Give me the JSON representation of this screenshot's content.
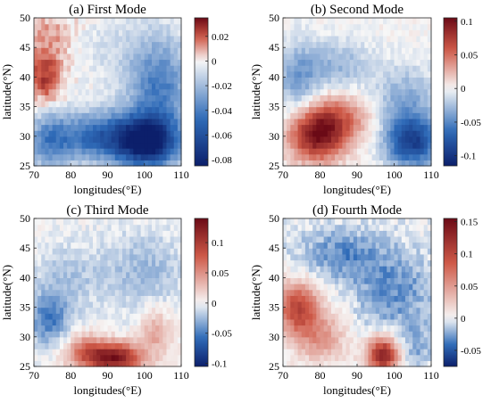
{
  "figure": {
    "layout": "2x2 grid of heatmap panels, each with a vertical colorbar on its right",
    "colormap": "diverging: dark blue (negative) - white (zero) - dark red (positive)",
    "colors": {
      "neg_dark": "#0c1f6b",
      "neg_mid": "#2f6bb8",
      "zero": "#f7f7f7",
      "pos_mid": "#cf5a48",
      "pos_dark": "#6b0a16"
    }
  },
  "chart_data": [
    {
      "type": "heatmap",
      "title": "(a) First Mode",
      "xlabel": "longitudes(°E)",
      "ylabel": "latitude(°N)",
      "xlim": [
        70,
        110
      ],
      "ylim": [
        25,
        50
      ],
      "x_ticks": [
        "70",
        "80",
        "90",
        "100",
        "110"
      ],
      "y_ticks": [
        "25",
        "30",
        "35",
        "40",
        "45",
        "50"
      ],
      "colorbar": {
        "range": [
          -0.085,
          0.035
        ],
        "ticks": [
          -0.08,
          -0.06,
          -0.04,
          -0.02,
          0,
          0.02
        ],
        "tick_labels": [
          "-0.08",
          "-0.06",
          "-0.04",
          "-0.02",
          "0",
          "0.02"
        ]
      },
      "features": [
        {
          "lon": 73,
          "lat": 40,
          "value": 0.025,
          "sx": 3.5,
          "sy": 3.0
        },
        {
          "lon": 75,
          "lat": 47,
          "value": 0.012,
          "sx": 5.0,
          "sy": 3.0
        },
        {
          "lon": 101,
          "lat": 29,
          "value": -0.075,
          "sx": 6.0,
          "sy": 3.0
        },
        {
          "lon": 88,
          "lat": 30,
          "value": -0.05,
          "sx": 9.0,
          "sy": 3.0
        },
        {
          "lon": 74,
          "lat": 29,
          "value": -0.03,
          "sx": 4.0,
          "sy": 3.5
        },
        {
          "lon": 104,
          "lat": 38,
          "value": -0.04,
          "sx": 6.0,
          "sy": 6.0
        },
        {
          "lon": 92,
          "lat": 45,
          "value": -0.008,
          "sx": 10.0,
          "sy": 4.0
        }
      ]
    },
    {
      "type": "heatmap",
      "title": "(b) Second Mode",
      "xlabel": "longitudes(°E)",
      "ylabel": "latitude(°N)",
      "xlim": [
        70,
        110
      ],
      "ylim": [
        25,
        50
      ],
      "x_ticks": [
        "70",
        "80",
        "90",
        "100",
        "110"
      ],
      "y_ticks": [
        "25",
        "30",
        "35",
        "40",
        "45",
        "50"
      ],
      "colorbar": {
        "range": [
          -0.115,
          0.105
        ],
        "ticks": [
          -0.1,
          -0.05,
          0,
          0.05,
          0.1
        ],
        "tick_labels": [
          "-0.1",
          "-0.05",
          "0",
          "0.05",
          "0.1"
        ]
      },
      "features": [
        {
          "lon": 79,
          "lat": 30,
          "value": 0.09,
          "sx": 5.0,
          "sy": 3.0
        },
        {
          "lon": 85,
          "lat": 33,
          "value": 0.05,
          "sx": 6.0,
          "sy": 3.0
        },
        {
          "lon": 105,
          "lat": 29,
          "value": -0.09,
          "sx": 5.0,
          "sy": 3.0
        },
        {
          "lon": 74,
          "lat": 40,
          "value": -0.04,
          "sx": 4.0,
          "sy": 4.0
        },
        {
          "lon": 85,
          "lat": 42,
          "value": -0.03,
          "sx": 6.0,
          "sy": 3.0
        },
        {
          "lon": 103,
          "lat": 36,
          "value": -0.035,
          "sx": 6.0,
          "sy": 4.0
        }
      ]
    },
    {
      "type": "heatmap",
      "title": "(c) Third Mode",
      "xlabel": "longitudes(°E)",
      "ylabel": "latitude(°N)",
      "xlim": [
        70,
        110
      ],
      "ylim": [
        25,
        50
      ],
      "x_ticks": [
        "70",
        "80",
        "90",
        "100",
        "110"
      ],
      "y_ticks": [
        "25",
        "30",
        "35",
        "40",
        "45",
        "50"
      ],
      "colorbar": {
        "range": [
          -0.105,
          0.14
        ],
        "ticks": [
          -0.1,
          -0.05,
          0,
          0.05,
          0.1
        ],
        "tick_labels": [
          "-0.1",
          "-0.05",
          "0",
          "0.05",
          "0.1"
        ]
      },
      "features": [
        {
          "lon": 92,
          "lat": 26.5,
          "value": 0.13,
          "sx": 5.0,
          "sy": 1.8
        },
        {
          "lon": 84,
          "lat": 27.5,
          "value": 0.06,
          "sx": 4.0,
          "sy": 2.0
        },
        {
          "lon": 103,
          "lat": 31,
          "value": 0.04,
          "sx": 3.0,
          "sy": 3.0
        },
        {
          "lon": 74,
          "lat": 33,
          "value": -0.05,
          "sx": 4.0,
          "sy": 3.0
        },
        {
          "lon": 79,
          "lat": 40,
          "value": -0.02,
          "sx": 7.0,
          "sy": 4.0
        },
        {
          "lon": 100,
          "lat": 41,
          "value": -0.025,
          "sx": 8.0,
          "sy": 5.0
        }
      ]
    },
    {
      "type": "heatmap",
      "title": "(d) Fourth Mode",
      "xlabel": "longitudes(°E)",
      "ylabel": "latitude(°N)",
      "xlim": [
        70,
        110
      ],
      "ylim": [
        25,
        50
      ],
      "x_ticks": [
        "70",
        "80",
        "90",
        "100",
        "110"
      ],
      "y_ticks": [
        "25",
        "30",
        "35",
        "40",
        "45",
        "50"
      ],
      "colorbar": {
        "range": [
          -0.075,
          0.155
        ],
        "ticks": [
          -0.05,
          0,
          0.05,
          0.1,
          0.15
        ],
        "tick_labels": [
          "-0.05",
          "0",
          "0.05",
          "0.1",
          "0.15"
        ]
      },
      "features": [
        {
          "lon": 74,
          "lat": 35,
          "value": 0.1,
          "sx": 4.0,
          "sy": 3.0
        },
        {
          "lon": 97,
          "lat": 27,
          "value": 0.14,
          "sx": 3.0,
          "sy": 2.0
        },
        {
          "lon": 80,
          "lat": 30,
          "value": 0.05,
          "sx": 5.0,
          "sy": 3.0
        },
        {
          "lon": 85,
          "lat": 44,
          "value": -0.03,
          "sx": 8.0,
          "sy": 3.0
        },
        {
          "lon": 100,
          "lat": 38,
          "value": -0.03,
          "sx": 8.0,
          "sy": 5.0
        },
        {
          "lon": 105,
          "lat": 28,
          "value": -0.02,
          "sx": 4.0,
          "sy": 3.0
        }
      ]
    }
  ]
}
